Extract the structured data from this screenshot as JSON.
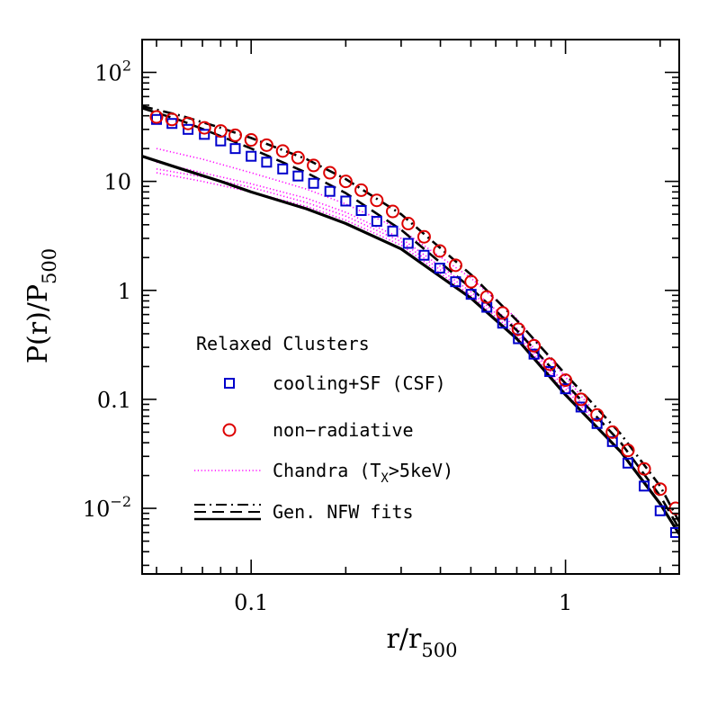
{
  "chart_data": {
    "type": "scatter",
    "x_scale": "log",
    "y_scale": "log",
    "xlim": [
      0.045,
      2.3
    ],
    "ylim": [
      0.0025,
      200
    ],
    "xlabel": {
      "main": "r/r",
      "sub": "500"
    },
    "ylabel": {
      "pre": "P(r)/P",
      "sub": "500"
    },
    "x_ticks": [
      {
        "value": 0.1,
        "label": "0.1"
      },
      {
        "value": 1,
        "label": "1"
      }
    ],
    "y_ticks": [
      {
        "value": 0.01,
        "base": "10",
        "exp": "−2"
      },
      {
        "value": 0.1,
        "label": "0.1"
      },
      {
        "value": 1,
        "label": "1"
      },
      {
        "value": 10,
        "label": "10"
      },
      {
        "value": 100,
        "base": "10",
        "exp": "2"
      }
    ],
    "legend": {
      "placement": "lower-left",
      "title": "Relaxed Clusters",
      "entries": [
        {
          "key": "csf",
          "text": "cooling+SF (CSF)"
        },
        {
          "key": "nonrad",
          "text": "non−radiative"
        },
        {
          "key": "chandra",
          "text_pre": "Chandra (T",
          "text_sub": "X",
          "text_post": ">5keV)"
        },
        {
          "key": "fits",
          "text": "Gen. NFW fits"
        }
      ]
    },
    "series": [
      {
        "key": "csf",
        "marker": "square",
        "color": "#0000cc",
        "x": [
          0.05,
          0.056,
          0.063,
          0.071,
          0.08,
          0.089,
          0.1,
          0.112,
          0.126,
          0.141,
          0.158,
          0.178,
          0.2,
          0.224,
          0.251,
          0.282,
          0.316,
          0.355,
          0.398,
          0.447,
          0.501,
          0.562,
          0.631,
          0.708,
          0.794,
          0.891,
          1.0,
          1.12,
          1.26,
          1.41,
          1.58,
          1.78,
          2.0,
          2.24
        ],
        "y": [
          37,
          34,
          30,
          27,
          23.5,
          20,
          17,
          15,
          13,
          11.2,
          9.6,
          8.1,
          6.6,
          5.4,
          4.3,
          3.5,
          2.7,
          2.1,
          1.6,
          1.2,
          0.92,
          0.7,
          0.5,
          0.36,
          0.26,
          0.18,
          0.125,
          0.085,
          0.06,
          0.041,
          0.026,
          0.016,
          0.0095,
          0.006
        ]
      },
      {
        "key": "nonrad",
        "marker": "circle",
        "color": "#dd0000",
        "x": [
          0.05,
          0.056,
          0.063,
          0.071,
          0.08,
          0.089,
          0.1,
          0.112,
          0.126,
          0.141,
          0.158,
          0.178,
          0.2,
          0.224,
          0.251,
          0.282,
          0.316,
          0.355,
          0.398,
          0.447,
          0.501,
          0.562,
          0.631,
          0.708,
          0.794,
          0.891,
          1.0,
          1.12,
          1.26,
          1.41,
          1.58,
          1.78,
          2.0,
          2.24
        ],
        "y": [
          39,
          37,
          34,
          31,
          29,
          26.5,
          24,
          21.5,
          19,
          16.5,
          14,
          12,
          10,
          8.3,
          6.7,
          5.3,
          4.1,
          3.1,
          2.3,
          1.7,
          1.2,
          0.87,
          0.62,
          0.44,
          0.31,
          0.21,
          0.15,
          0.1,
          0.072,
          0.05,
          0.034,
          0.023,
          0.015,
          0.01
        ]
      },
      {
        "key": "chandra_1",
        "line": "dotted",
        "color": "#ff00ff",
        "x": [
          0.05,
          0.07,
          0.1,
          0.15,
          0.2,
          0.3,
          0.5,
          0.7,
          1.0,
          1.2
        ],
        "y": [
          20,
          16,
          12,
          8.5,
          6.2,
          3.6,
          1.3,
          0.55,
          0.16,
          0.085
        ]
      },
      {
        "key": "chandra_2",
        "line": "dotted",
        "color": "#ff00ff",
        "x": [
          0.05,
          0.07,
          0.1,
          0.15,
          0.2,
          0.3,
          0.5,
          0.7,
          1.0,
          1.2
        ],
        "y": [
          15,
          12,
          9.5,
          7,
          5.2,
          3,
          1.05,
          0.45,
          0.135,
          0.075
        ]
      },
      {
        "key": "chandra_3",
        "line": "dotted",
        "color": "#ff00ff",
        "x": [
          0.05,
          0.07,
          0.1,
          0.15,
          0.2,
          0.3,
          0.5,
          0.7,
          1.0,
          1.2
        ],
        "y": [
          13,
          11,
          8.8,
          6.4,
          4.8,
          2.8,
          0.97,
          0.42,
          0.125,
          0.07
        ]
      },
      {
        "key": "chandra_4",
        "line": "dotted",
        "color": "#ff00ff",
        "x": [
          0.05,
          0.07,
          0.1,
          0.15,
          0.2,
          0.3,
          0.5,
          0.7,
          1.0,
          1.2
        ],
        "y": [
          12,
          10,
          8,
          5.9,
          4.4,
          2.6,
          0.9,
          0.39,
          0.115,
          0.065
        ]
      },
      {
        "key": "fit_csf",
        "line": "dashed",
        "color": "#000000",
        "x": [
          0.045,
          0.06,
          0.08,
          0.1,
          0.15,
          0.2,
          0.3,
          0.5,
          0.7,
          1.0,
          1.5,
          2.0,
          2.3
        ],
        "y": [
          47,
          36,
          26,
          20,
          12,
          7.8,
          3.6,
          1.05,
          0.43,
          0.14,
          0.04,
          0.013,
          0.0065
        ]
      },
      {
        "key": "fit_nonrad",
        "line": "dashdot",
        "color": "#000000",
        "x": [
          0.045,
          0.06,
          0.08,
          0.1,
          0.15,
          0.2,
          0.3,
          0.5,
          0.7,
          1.0,
          1.5,
          2.0,
          2.3
        ],
        "y": [
          49,
          40,
          31,
          25,
          16,
          10.5,
          5,
          1.4,
          0.53,
          0.17,
          0.048,
          0.016,
          0.0075
        ]
      },
      {
        "key": "fit_chandra",
        "line": "solid",
        "color": "#000000",
        "x": [
          0.045,
          0.06,
          0.08,
          0.1,
          0.15,
          0.2,
          0.3,
          0.5,
          0.7,
          1.0,
          1.5,
          2.0,
          2.3
        ],
        "y": [
          17,
          13,
          10,
          8,
          5.6,
          4.1,
          2.4,
          0.85,
          0.36,
          0.11,
          0.033,
          0.011,
          0.0058
        ]
      }
    ]
  }
}
